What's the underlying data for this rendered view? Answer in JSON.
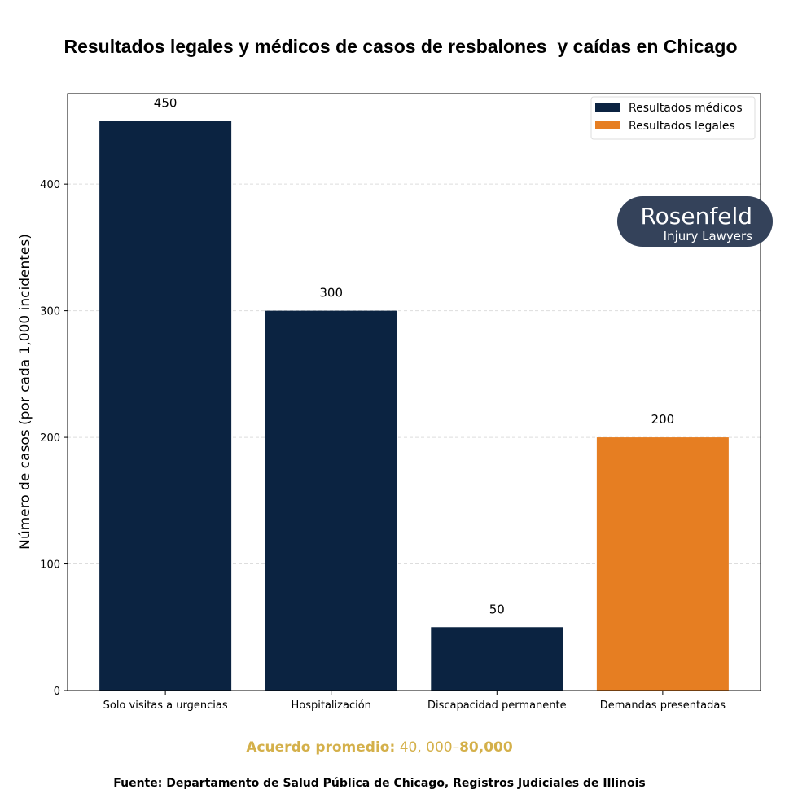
{
  "chart_data": {
    "type": "bar",
    "title": "Resultados legales y médicos de casos de resbalones  y caídas en Chicago",
    "categories": [
      "Solo visitas a urgencias",
      "Hospitalización",
      "Discapacidad permanente",
      "Demandas presentadas"
    ],
    "values": [
      450,
      300,
      50,
      200
    ],
    "series_of_bar": [
      "Resultados médicos",
      "Resultados médicos",
      "Resultados médicos",
      "Resultados legales"
    ],
    "legend": [
      {
        "name": "Resultados médicos",
        "color": "#0b2341"
      },
      {
        "name": "Resultados legales",
        "color": "#e67e22"
      }
    ],
    "legend_placement": "top-right",
    "xlabel": "",
    "ylabel": "Número de casos (por cada 1,000 incidentes)",
    "ylim": [
      0,
      471.5
    ],
    "yticks": [
      0,
      100,
      200,
      300,
      400
    ],
    "grid": "horizontal dashed",
    "data_labels": [
      "450",
      "300",
      "50",
      "200"
    ]
  },
  "annotation": {
    "label": "Acuerdo promedio:",
    "range_start": "40, 000–",
    "range_end": "80,000"
  },
  "source": "Fuente: Departamento de Salud Pública de Chicago, Registros Judiciales de Illinois",
  "logo": {
    "name": "Rosenfeld",
    "subtitle": "Injury Lawyers",
    "bg": "#34425a"
  }
}
